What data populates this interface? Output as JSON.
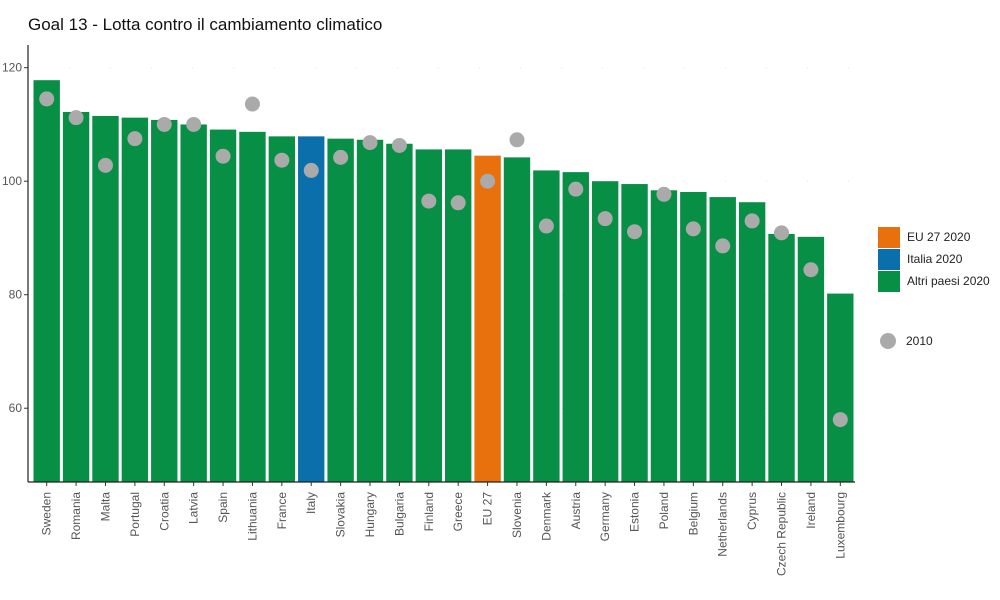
{
  "chart_data": {
    "type": "bar",
    "title": "Goal 13 - Lotta contro il cambiamento climatico",
    "xlabel": "",
    "ylabel": "",
    "ylim": [
      47,
      124
    ],
    "yticks": [
      60,
      80,
      100,
      120
    ],
    "grid": true,
    "legend_position": "right",
    "colors": {
      "eu": "#e8700d",
      "italy": "#0a6fab",
      "other": "#068f45",
      "dot": "#aaaaaa"
    },
    "legend": [
      {
        "label": "EU 27 2020",
        "key": "eu"
      },
      {
        "label": "Italia 2020",
        "key": "italy"
      },
      {
        "label": "Altri paesi 2020",
        "key": "other"
      },
      {
        "label": "2010",
        "key": "dot"
      }
    ],
    "categories": [
      "Sweden",
      "Romania",
      "Malta",
      "Portugal",
      "Croatia",
      "Latvia",
      "Spain",
      "Lithuania",
      "France",
      "Italy",
      "Slovakia",
      "Hungary",
      "Bulgaria",
      "Finland",
      "Greece",
      "EU 27",
      "Slovenia",
      "Denmark",
      "Austria",
      "Germany",
      "Estonia",
      "Poland",
      "Belgium",
      "Netherlands",
      "Cyprus",
      "Czech Republic",
      "Ireland",
      "Luxembourg"
    ],
    "groups": [
      "other",
      "other",
      "other",
      "other",
      "other",
      "other",
      "other",
      "other",
      "other",
      "italy",
      "other",
      "other",
      "other",
      "other",
      "other",
      "eu",
      "other",
      "other",
      "other",
      "other",
      "other",
      "other",
      "other",
      "other",
      "other",
      "other",
      "other",
      "other"
    ],
    "series": [
      {
        "name": "2020",
        "type": "bar",
        "values": [
          117.8,
          112.2,
          111.5,
          111.2,
          110.8,
          110.0,
          109.1,
          108.7,
          107.9,
          107.9,
          107.5,
          107.3,
          106.6,
          105.6,
          105.6,
          104.5,
          104.2,
          101.9,
          101.6,
          100.0,
          99.5,
          98.4,
          98.1,
          97.2,
          96.3,
          90.7,
          90.2,
          80.2
        ]
      },
      {
        "name": "2010",
        "type": "point",
        "values": [
          114.5,
          111.2,
          102.8,
          107.5,
          110.0,
          110.0,
          104.4,
          113.6,
          103.7,
          101.9,
          104.2,
          106.8,
          106.3,
          96.5,
          96.2,
          100.0,
          107.3,
          92.1,
          98.6,
          93.4,
          91.1,
          97.7,
          91.6,
          88.6,
          93.0,
          90.9,
          84.4,
          58.0
        ]
      }
    ]
  }
}
